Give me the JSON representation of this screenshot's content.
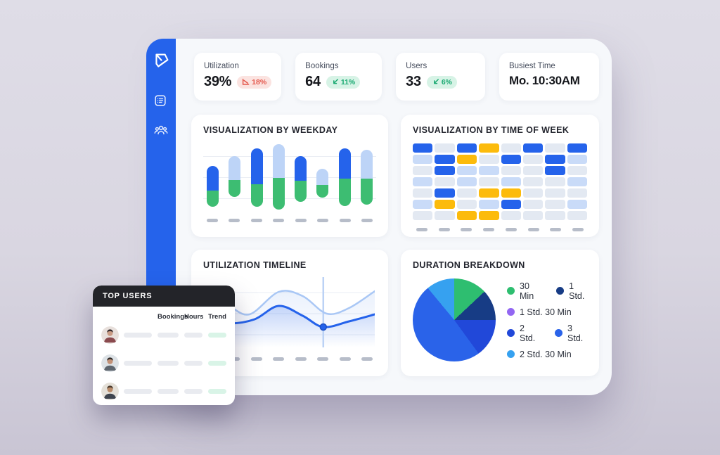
{
  "sidebar": {
    "logo_icon": "brand-logo",
    "nav": [
      {
        "icon": "list-icon"
      },
      {
        "icon": "users-group-icon"
      }
    ]
  },
  "stats": [
    {
      "label": "Utilization",
      "value": "39%",
      "badge": {
        "text": "18%",
        "tone": "negative",
        "icon": "chart-down-icon"
      }
    },
    {
      "label": "Bookings",
      "value": "64",
      "badge": {
        "text": "11%",
        "tone": "positive",
        "icon": "trend-down-icon"
      }
    },
    {
      "label": "Users",
      "value": "33",
      "badge": {
        "text": "6%",
        "tone": "positive",
        "icon": "trend-down-icon"
      }
    },
    {
      "label": "Busiest Time",
      "value": "Mo. 10:30AM",
      "badge": null
    }
  ],
  "cards": {
    "weekday": {
      "title": "VISUALIZATION BY WEEKDAY"
    },
    "timeofweek": {
      "title": "VISUALIZATION BY TIME OF WEEK"
    },
    "timeline": {
      "title": "UTILIZATION TIMELINE"
    },
    "duration": {
      "title": "DURATION BREAKDOWN"
    }
  },
  "top_users": {
    "title": "TOP USERS",
    "columns": [
      "Bookings",
      "Hours",
      "Trend"
    ],
    "rows": [
      {
        "avatar": "user-1"
      },
      {
        "avatar": "user-2"
      },
      {
        "avatar": "user-3"
      }
    ]
  },
  "colors": {
    "accent_blue": "#2563EB",
    "light_blue": "#BDD4F7",
    "green": "#3DBD72",
    "heat_blue": "#2563EB",
    "heat_yellow": "#FCBB0C",
    "heat_lightblue": "#C9DBF8",
    "heat_pale": "#E3E9F2",
    "badge_red_text": "#E4574B",
    "badge_green_text": "#19A971"
  },
  "chart_data": [
    {
      "type": "bar",
      "title": "VISUALIZATION BY WEEKDAY",
      "categories": [
        "",
        "",
        "",
        "",
        "",
        "",
        "",
        ""
      ],
      "note": "floating stacked bars, values are % of plot height from bottom",
      "bars": [
        {
          "green": [
            8,
            31
          ],
          "top_segment": [
            31,
            66
          ],
          "variant": "dark"
        },
        {
          "green": [
            22,
            46
          ],
          "top_segment": [
            46,
            80
          ],
          "variant": "light"
        },
        {
          "green": [
            8,
            40
          ],
          "top_segment": [
            40,
            91
          ],
          "variant": "dark"
        },
        {
          "green": [
            4,
            49
          ],
          "top_segment": [
            49,
            97
          ],
          "variant": "light"
        },
        {
          "green": [
            15,
            45
          ],
          "top_segment": [
            45,
            80
          ],
          "variant": "dark"
        },
        {
          "green": [
            21,
            39
          ],
          "top_segment": [
            39,
            62
          ],
          "variant": "light"
        },
        {
          "green": [
            9,
            48
          ],
          "top_segment": [
            48,
            91
          ],
          "variant": "dark"
        },
        {
          "green": [
            11,
            48
          ],
          "top_segment": [
            48,
            89
          ],
          "variant": "light"
        }
      ],
      "grid": true
    },
    {
      "type": "heatmap",
      "title": "VISUALIZATION BY TIME OF WEEK",
      "columns": 8,
      "rows": 7,
      "legend_codes": {
        "B": "#2563EB",
        "Y": "#FCBB0C",
        "L": "#C9DBF8",
        "P": "#E3E9F2"
      },
      "grid_values": [
        [
          "B",
          "P",
          "B",
          "Y",
          "P",
          "B",
          "P",
          "B"
        ],
        [
          "L",
          "B",
          "Y",
          "P",
          "B",
          "P",
          "B",
          "L"
        ],
        [
          "P",
          "B",
          "L",
          "L",
          "P",
          "P",
          "B",
          "P"
        ],
        [
          "L",
          "P",
          "L",
          "P",
          "L",
          "P",
          "P",
          "L"
        ],
        [
          "P",
          "B",
          "P",
          "Y",
          "Y",
          "P",
          "P",
          "P"
        ],
        [
          "L",
          "Y",
          "P",
          "L",
          "B",
          "P",
          "P",
          "L"
        ],
        [
          "P",
          "P",
          "Y",
          "Y",
          "P",
          "P",
          "P",
          "P"
        ]
      ]
    },
    {
      "type": "line",
      "title": "UTILIZATION TIMELINE",
      "x_range": [
        0,
        100
      ],
      "y_range": [
        0,
        100
      ],
      "grid": true,
      "series": [
        {
          "name": "secondary",
          "color": "#A9C7F5",
          "points": [
            [
              0,
              30
            ],
            [
              14,
              40
            ],
            [
              27,
              53
            ],
            [
              44,
              21
            ],
            [
              58,
              27
            ],
            [
              72,
              52
            ],
            [
              85,
              44
            ],
            [
              100,
              20
            ]
          ]
        },
        {
          "name": "primary",
          "color": "#2563EB",
          "points": [
            [
              0,
              60
            ],
            [
              15,
              66
            ],
            [
              30,
              60
            ],
            [
              44,
              41
            ],
            [
              58,
              55
            ],
            [
              70,
              71
            ],
            [
              85,
              63
            ],
            [
              100,
              53
            ]
          ]
        }
      ],
      "marker": {
        "x": 70,
        "y": 71
      }
    },
    {
      "type": "pie",
      "title": "DURATION BREAKDOWN",
      "legend_position": "right",
      "slices": [
        {
          "label": "30 Min",
          "value": 13,
          "color": "#2EBE70"
        },
        {
          "label": "1 Std.",
          "value": 12,
          "color": "#173C85"
        },
        {
          "label": "1 Std. 30 Min",
          "value": 0,
          "color": "#9266F2"
        },
        {
          "label": "2 Std.",
          "value": 15,
          "color": "#2148D9"
        },
        {
          "label": "3 Std.",
          "value": 49,
          "color": "#2A63E9"
        },
        {
          "label": "2 Std. 30 Min",
          "value": 11,
          "color": "#36A1F0"
        }
      ]
    }
  ]
}
